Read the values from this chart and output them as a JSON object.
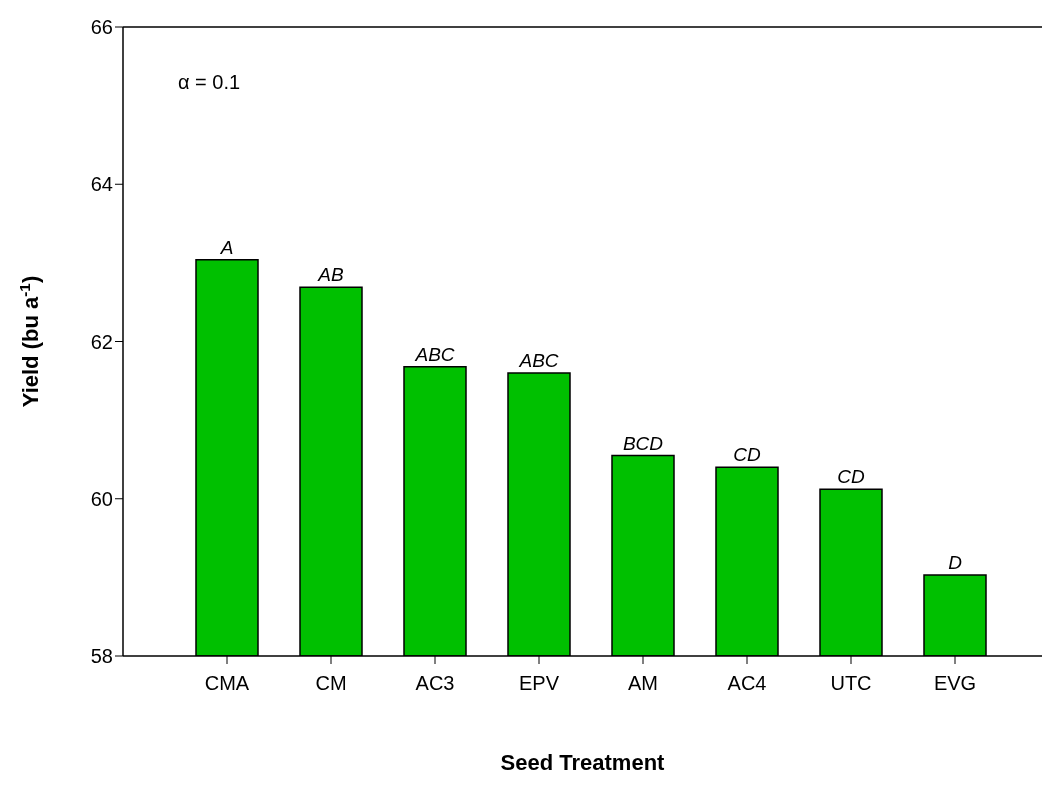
{
  "chart_data": {
    "type": "bar",
    "xlabel": "Seed Treatment",
    "ylabel": "Yield (bu a$^{-1}$)",
    "categories": [
      "CMA",
      "CM",
      "AC3",
      "EPV",
      "AM",
      "AC4",
      "UTC",
      "EVG"
    ],
    "values": [
      63.04,
      62.69,
      61.68,
      61.6,
      60.55,
      60.4,
      60.12,
      59.03
    ],
    "color": "#00c000",
    "ylim": [
      58,
      66
    ],
    "yticks": [
      58,
      60,
      62,
      64,
      66
    ],
    "grid": false,
    "legend": false,
    "annotations": [
      "α = 0.1",
      {
        "text": "A",
        "x": "CMA",
        "y": 63.04
      },
      {
        "text": "AB",
        "x": "CM",
        "y": 62.69
      },
      {
        "text": "ABC",
        "x": "AC3",
        "y": 61.68
      },
      {
        "text": "ABC",
        "x": "EPV",
        "y": 61.6
      },
      {
        "text": "BCD",
        "x": "AM",
        "y": 60.55
      },
      {
        "text": "CD",
        "x": "AC4",
        "y": 60.4
      },
      {
        "text": "CD",
        "x": "UTC",
        "y": 60.12
      },
      {
        "text": "D",
        "x": "EVG",
        "y": 59.03
      }
    ]
  }
}
